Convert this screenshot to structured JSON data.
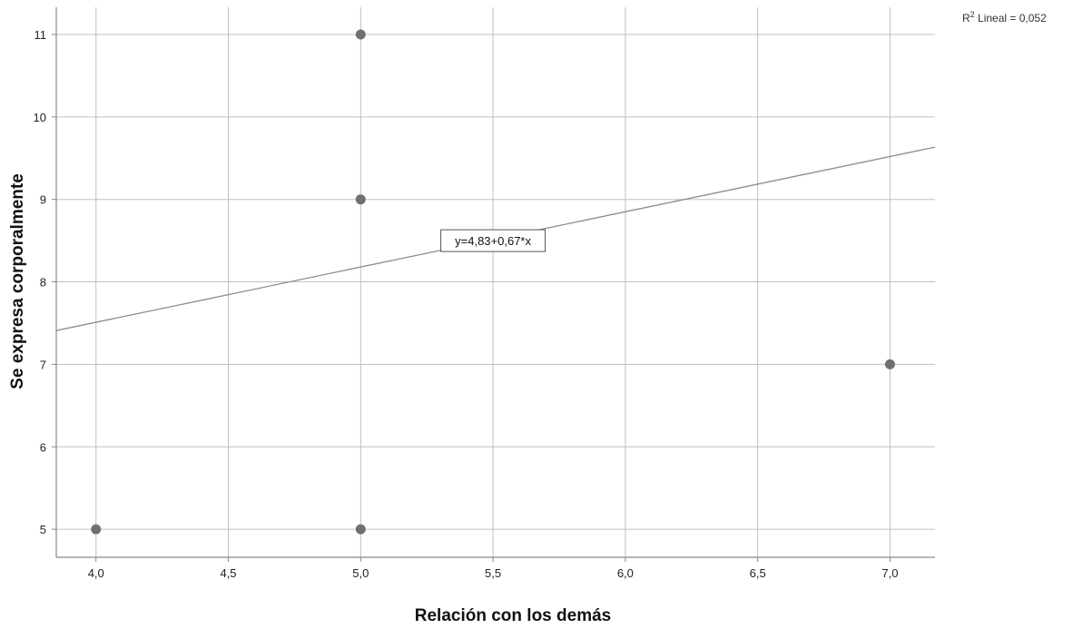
{
  "chart_data": {
    "type": "scatter",
    "xlabel": "Relación con los demás",
    "ylabel": "Se expresa corporalmente",
    "xlim": [
      3.85,
      7.17
    ],
    "ylim": [
      4.66,
      11.33
    ],
    "x_ticks": [
      4.0,
      4.5,
      5.0,
      5.5,
      6.0,
      6.5,
      7.0
    ],
    "x_tick_labels": [
      "4,0",
      "4,5",
      "5,0",
      "5,5",
      "6,0",
      "6,5",
      "7,0"
    ],
    "y_ticks": [
      5,
      6,
      7,
      8,
      9,
      10,
      11
    ],
    "y_tick_labels": [
      "5",
      "6",
      "7",
      "8",
      "9",
      "10",
      "11"
    ],
    "grid": true,
    "points": [
      {
        "x": 4.0,
        "y": 5
      },
      {
        "x": 5.0,
        "y": 5
      },
      {
        "x": 5.0,
        "y": 9
      },
      {
        "x": 5.0,
        "y": 11
      },
      {
        "x": 7.0,
        "y": 7
      }
    ],
    "fit_line": {
      "intercept": 4.83,
      "slope": 0.67
    },
    "fit_equation": "y=4,83+0,67*x",
    "fit_label_anchor": {
      "x": 5.5,
      "y": 8.5
    },
    "r2_prefix": "R",
    "r2_superscript": "2",
    "r2_text": " Lineal = 0,052",
    "colors": {
      "point": "#707070",
      "line": "#8c8c8c",
      "grid": "#c0c0c0",
      "axis": "#888888"
    }
  }
}
